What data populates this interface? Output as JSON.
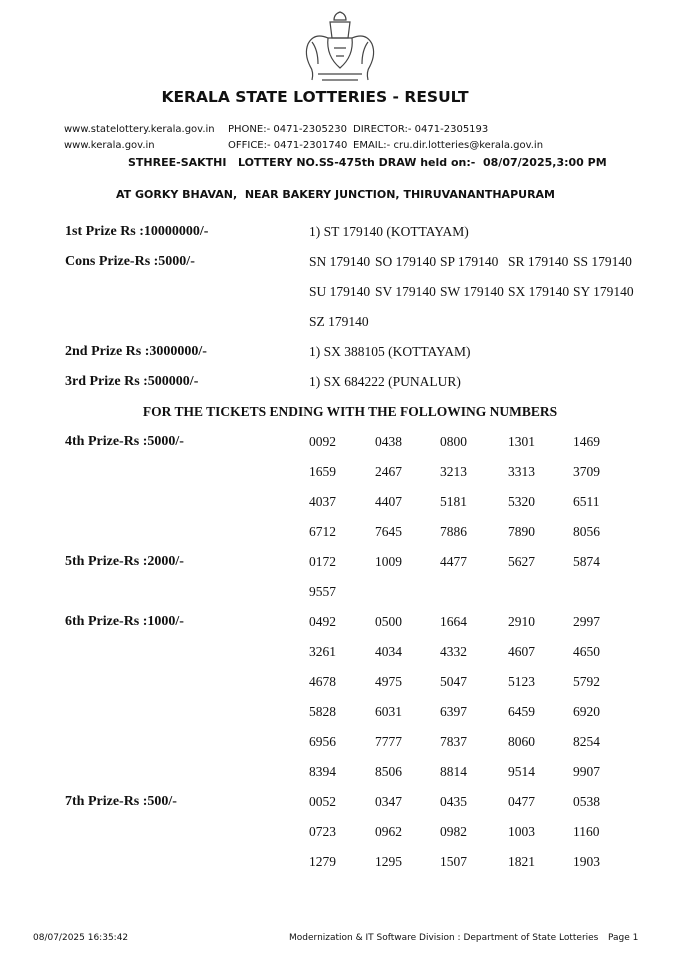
{
  "header": {
    "title": "KERALA STATE LOTTERIES - RESULT",
    "contacts": [
      [
        "www.statelottery.kerala.gov.in",
        "PHONE:- 0471-2305230",
        "DIRECTOR:- 0471-2305193"
      ],
      [
        "www.kerala.gov.in",
        "OFFICE:- 0471-2301740",
        "EMAIL:- cru.dir.lotteries@kerala.gov.in"
      ]
    ],
    "draw": "STHREE-SAKTHI   LOTTERY NO.SS-475th DRAW held on:-  08/07/2025,3:00 PM",
    "venue": "AT GORKY BHAVAN,  NEAR BAKERY JUNCTION, THIRUVANANTHAPURAM"
  },
  "major_prizes": [
    {
      "label": "1st Prize Rs :10000000/-",
      "result": "1) ST 179140 (KOTTAYAM)"
    },
    {
      "label": "Cons Prize-Rs :5000/-",
      "tickets": [
        "SN 179140",
        "SO 179140",
        "SP 179140",
        "SR 179140",
        "SS 179140",
        "SU 179140",
        "SV 179140",
        "SW 179140",
        "SX 179140",
        "SY 179140",
        "SZ 179140"
      ]
    },
    {
      "label": "2nd Prize Rs :3000000/-",
      "result": "1) SX 388105 (KOTTAYAM)"
    },
    {
      "label": "3rd Prize Rs :500000/-",
      "result": "1) SX 684222 (PUNALUR)"
    }
  ],
  "ending_heading": "FOR THE TICKETS ENDING WITH THE FOLLOWING NUMBERS",
  "ending_prizes": [
    {
      "label": "4th Prize-Rs :5000/-",
      "tickets": [
        "0092",
        "0438",
        "0800",
        "1301",
        "1469",
        "1659",
        "2467",
        "3213",
        "3313",
        "3709",
        "4037",
        "4407",
        "5181",
        "5320",
        "6511",
        "6712",
        "7645",
        "7886",
        "7890",
        "8056"
      ]
    },
    {
      "label": "5th Prize-Rs :2000/-",
      "tickets": [
        "0172",
        "1009",
        "4477",
        "5627",
        "5874",
        "9557"
      ]
    },
    {
      "label": "6th Prize-Rs :1000/-",
      "tickets": [
        "0492",
        "0500",
        "1664",
        "2910",
        "2997",
        "3261",
        "4034",
        "4332",
        "4607",
        "4650",
        "4678",
        "4975",
        "5047",
        "5123",
        "5792",
        "5828",
        "6031",
        "6397",
        "6459",
        "6920",
        "6956",
        "7777",
        "7837",
        "8060",
        "8254",
        "8394",
        "8506",
        "8814",
        "9514",
        "9907"
      ]
    },
    {
      "label": "7th Prize-Rs :500/-",
      "tickets": [
        "0052",
        "0347",
        "0435",
        "0477",
        "0538",
        "0723",
        "0962",
        "0982",
        "1003",
        "1160",
        "1279",
        "1295",
        "1507",
        "1821",
        "1903"
      ]
    }
  ],
  "footer": {
    "timestamp": "08/07/2025 16:35:42",
    "division": "Modernization & IT Software Division : Department of State Lotteries",
    "page": "Page 1"
  }
}
